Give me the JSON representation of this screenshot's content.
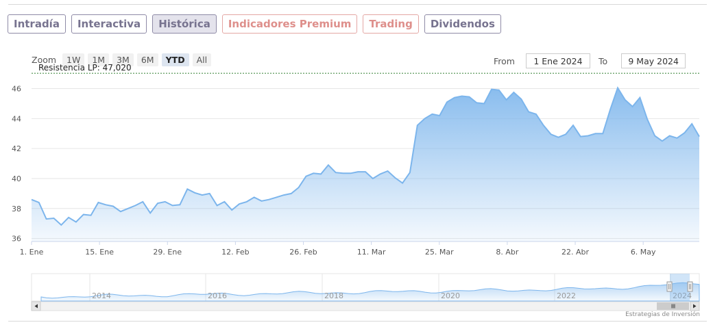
{
  "tabs": [
    {
      "label": "Intradía",
      "style": "normal"
    },
    {
      "label": "Interactiva",
      "style": "normal"
    },
    {
      "label": "Histórica",
      "style": "active"
    },
    {
      "label": "Indicadores Premium",
      "style": "red"
    },
    {
      "label": "Trading",
      "style": "red"
    },
    {
      "label": "Dividendos",
      "style": "normal"
    }
  ],
  "range_selector": {
    "zoom_label": "Zoom",
    "buttons": [
      "1W",
      "1M",
      "3M",
      "6M",
      "YTD",
      "All"
    ],
    "selected": "YTD"
  },
  "date_range": {
    "from_label": "From",
    "from_value": "1 Ene 2024",
    "to_label": "To",
    "to_value": "9 May 2024"
  },
  "resistance": {
    "label": "Resistencia LP: 47,020",
    "value": 47.02,
    "color": "#2e7d2e"
  },
  "navigator": {
    "year_labels": [
      "2014",
      "2016",
      "2018",
      "2020",
      "2022",
      "2024"
    ]
  },
  "credit": "Estrategias de Inversión",
  "colors": {
    "series_line": "#7cb5ec",
    "tab_border": "#8e8aa6",
    "tab_red": "#de8f8b"
  },
  "chart_data": {
    "type": "area",
    "title": "",
    "xlabel": "",
    "ylabel": "",
    "ylim": [
      35.8,
      46.8
    ],
    "y_ticks": [
      36,
      38,
      40,
      42,
      44,
      46
    ],
    "x_ticks": [
      "1. Ene",
      "15. Ene",
      "29. Ene",
      "12. Feb",
      "26. Feb",
      "11. Mar",
      "25. Mar",
      "8. Abr",
      "22. Abr",
      "6. May"
    ],
    "grid": true,
    "series": [
      {
        "values": [
          38.6,
          38.4,
          37.3,
          37.35,
          36.9,
          37.4,
          37.1,
          37.6,
          37.55,
          38.4,
          38.25,
          38.15,
          37.8,
          38.0,
          38.2,
          38.45,
          37.7,
          38.35,
          38.45,
          38.2,
          38.25,
          39.3,
          39.05,
          38.9,
          39.0,
          38.2,
          38.45,
          37.9,
          38.3,
          38.45,
          38.75,
          38.5,
          38.6,
          38.75,
          38.9,
          39.0,
          39.4,
          40.15,
          40.35,
          40.3,
          40.9,
          40.4,
          40.35,
          40.35,
          40.45,
          40.45,
          40.0,
          40.3,
          40.5,
          40.05,
          39.7,
          40.4,
          43.55,
          44.0,
          44.3,
          44.2,
          45.1,
          45.4,
          45.5,
          45.45,
          45.05,
          45.0,
          45.95,
          45.9,
          45.25,
          45.75,
          45.3,
          44.45,
          44.3,
          43.55,
          42.95,
          42.75,
          42.95,
          43.55,
          42.8,
          42.85,
          43.0,
          43.0,
          44.6,
          46.05,
          45.25,
          44.8,
          45.4,
          43.95,
          42.85,
          42.5,
          42.85,
          42.7,
          43.05,
          43.65,
          42.8
        ]
      }
    ]
  }
}
